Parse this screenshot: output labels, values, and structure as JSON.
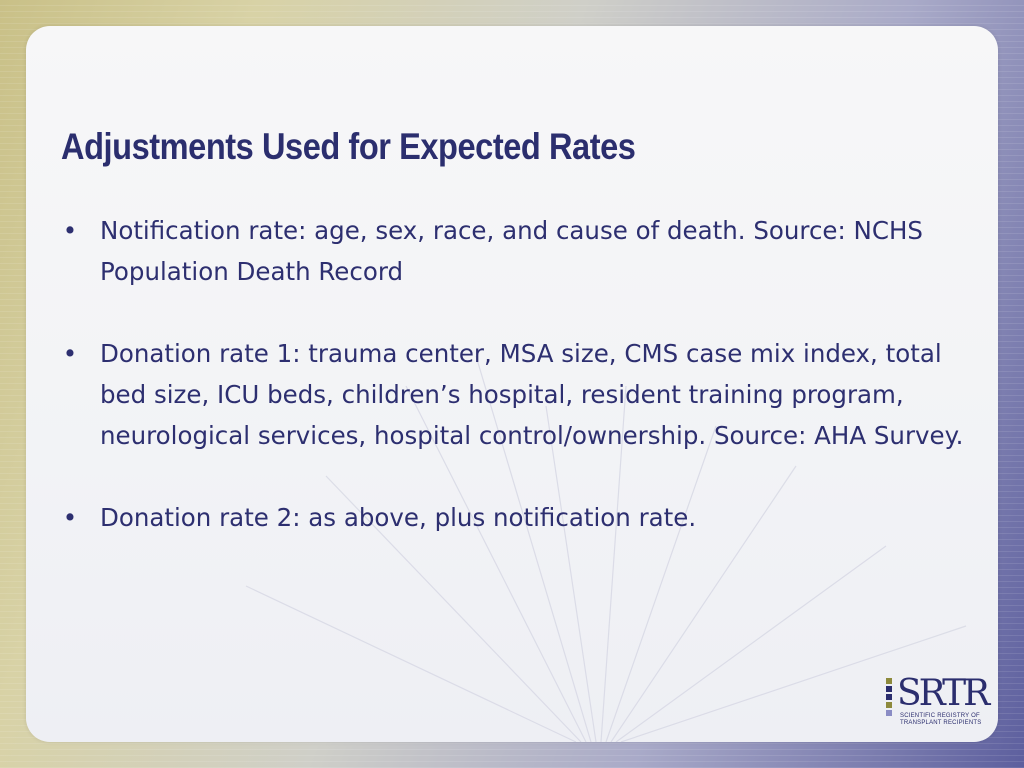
{
  "slide": {
    "title": "Adjustments Used for Expected Rates",
    "bullet_symbol": "•",
    "bullets": [
      "Notification rate: age, sex, race, and cause of death.  Source: NCHS Population Death Record",
      "Donation rate 1: trauma center, MSA size, CMS case mix index, total bed size, ICU beds, children’s hospital, resident training program, neurological services, hospital control/ownership. Source: AHA Survey.",
      "Donation rate 2: as above, plus notification rate."
    ]
  },
  "logo": {
    "wordmark": "SRTR",
    "subtitle": "SCIENTIFIC REGISTRY OF TRANSPLANT RECIPIENTS",
    "colors": {
      "navy": "#2b2e6e",
      "olive": "#8d8a3c",
      "lavender": "#8a8cc4"
    }
  },
  "colors": {
    "title": "#2b2e6e",
    "body_text": "#2d2f70",
    "panel": "#f5f5f7"
  }
}
